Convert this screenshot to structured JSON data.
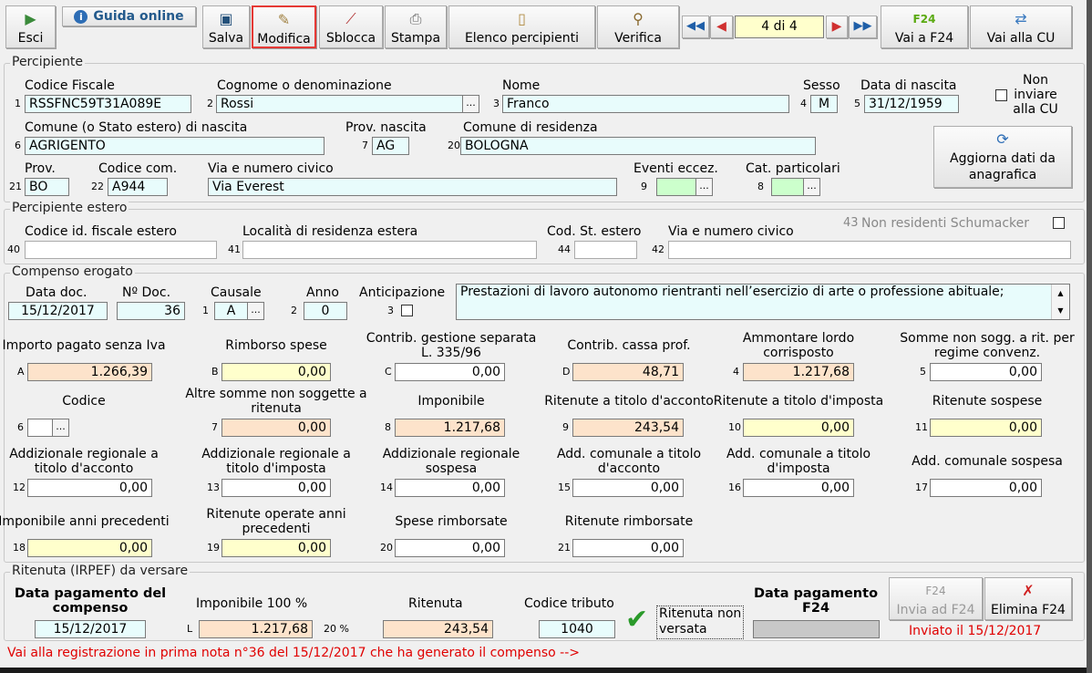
{
  "toolbar": {
    "esci": "Esci",
    "guida": "Guida online",
    "salva": "Salva",
    "modifica": "Modifica",
    "sblocca": "Sblocca",
    "stampa": "Stampa",
    "elenco": "Elenco percipienti",
    "verifica": "Verifica",
    "record": "4 di 4",
    "vai_f24": "Vai a F24",
    "vai_cu": "Vai alla CU"
  },
  "percipiente": {
    "title": "Percipiente",
    "cf_label": "Codice Fiscale",
    "cf": "RSSFNC59T31A089E",
    "cognome_label": "Cognome o denominazione",
    "cognome": "Rossi",
    "nome_label": "Nome",
    "nome": "Franco",
    "sesso_label": "Sesso",
    "sesso": "M",
    "nascita_label": "Data di nascita",
    "nascita": "31/12/1959",
    "non_inviare": "Non inviare alla CU",
    "comune_nascita_label": "Comune (o Stato estero) di nascita",
    "comune_nascita": "AGRIGENTO",
    "prov_nascita_label": "Prov. nascita",
    "prov_nascita": "AG",
    "comune_res_label": "Comune di residenza",
    "comune_res": "BOLOGNA",
    "aggiorna": "Aggiorna dati da anagrafica",
    "prov_label": "Prov.",
    "prov": "BO",
    "codcom_label": "Codice com.",
    "codcom": "A944",
    "via_label": "Via e numero civico",
    "via": "Via Everest",
    "eventi_label": "Eventi eccez.",
    "cat_label": "Cat. particolari"
  },
  "estero": {
    "title": "Percipiente estero",
    "codid_label": "Codice id. fiscale estero",
    "localita_label": "Località di residenza estera",
    "codst_label": "Cod. St. estero",
    "via_label": "Via e numero civico",
    "schumacker": "Non residenti Schumacker"
  },
  "compenso": {
    "title": "Compenso erogato",
    "datadoc_label": "Data doc.",
    "datadoc": "15/12/2017",
    "ndoc_label": "Nº Doc.",
    "ndoc": "36",
    "causale_label": "Causale",
    "causale": "A",
    "anno_label": "Anno",
    "anno": "0",
    "anticipazione_label": "Anticipazione",
    "descrizione": "Prestazioni di lavoro autonomo rientranti nell’esercizio di arte o professione abituale;",
    "cells": [
      {
        "p": "A",
        "label": "Importo pagato senza Iva",
        "value": "1.266,39",
        "color": "or"
      },
      {
        "p": "B",
        "label": "Rimborso spese",
        "value": "0,00",
        "color": "ye"
      },
      {
        "p": "C",
        "label": "Contrib. gestione separata L. 335/96",
        "value": "0,00",
        "color": "wh"
      },
      {
        "p": "D",
        "label": "Contrib. cassa prof.",
        "value": "48,71",
        "color": "or"
      },
      {
        "p": "4",
        "label": "Ammontare lordo corrisposto",
        "value": "1.217,68",
        "color": "or"
      },
      {
        "p": "5",
        "label": "Somme non sogg. a rit. per regime convenz.",
        "value": "0,00",
        "color": "wh"
      },
      {
        "p": "6",
        "label": "Codice",
        "value": "",
        "color": "wh",
        "dots": true
      },
      {
        "p": "7",
        "label": "Altre somme non soggette a ritenuta",
        "value": "0,00",
        "color": "or"
      },
      {
        "p": "8",
        "label": "Imponibile",
        "value": "1.217,68",
        "color": "or"
      },
      {
        "p": "9",
        "label": "Ritenute a titolo d'acconto",
        "value": "243,54",
        "color": "or"
      },
      {
        "p": "10",
        "label": "Ritenute a titolo d'imposta",
        "value": "0,00",
        "color": "ye"
      },
      {
        "p": "11",
        "label": "Ritenute sospese",
        "value": "0,00",
        "color": "ye"
      },
      {
        "p": "12",
        "label": "Addizionale regionale a titolo d'acconto",
        "value": "0,00",
        "color": "wh"
      },
      {
        "p": "13",
        "label": "Addizionale regionale a titolo d'imposta",
        "value": "0,00",
        "color": "wh"
      },
      {
        "p": "14",
        "label": "Addizionale regionale sospesa",
        "value": "0,00",
        "color": "wh"
      },
      {
        "p": "15",
        "label": "Add. comunale a titolo d'acconto",
        "value": "0,00",
        "color": "wh"
      },
      {
        "p": "16",
        "label": "Add. comunale a titolo d'imposta",
        "value": "0,00",
        "color": "wh"
      },
      {
        "p": "17",
        "label": "Add. comunale sospesa",
        "value": "0,00",
        "color": "wh"
      },
      {
        "p": "18",
        "label": "Imponibile anni precedenti",
        "value": "0,00",
        "color": "ye"
      },
      {
        "p": "19",
        "label": "Ritenute operate anni precedenti",
        "value": "0,00",
        "color": "ye"
      },
      {
        "p": "20",
        "label": "Spese rimborsate",
        "value": "0,00",
        "color": "wh"
      },
      {
        "p": "21",
        "label": "Ritenute rimborsate",
        "value": "0,00",
        "color": "wh"
      }
    ]
  },
  "ritenuta": {
    "title": "Ritenuta (IRPEF) da versare",
    "datapag_label": "Data pagamento del compenso",
    "datapag": "15/12/2017",
    "imponibile_label": "Imponibile 100 %",
    "imponibile": "1.217,68",
    "perc": "20 %",
    "ritenuta_label": "Ritenuta",
    "ritenuta": "243,54",
    "codtrib_label": "Codice tributo",
    "codtrib": "1040",
    "non_versata": "Ritenuta non versata",
    "datapagf24_label": "Data pagamento F24",
    "invia": "Invia ad F24",
    "elimina": "Elimina F24",
    "inviato_label": "Inviato il",
    "inviato": "15/12/2017"
  },
  "footer_link": "Vai alla registrazione in prima nota n°36 del 15/12/2017 che ha generato il compenso -->",
  "colors": {
    "highlight": "#e53935",
    "link": "#e00000",
    "cyan": "#e8fcfc",
    "orange": "#fde3cb",
    "yellow": "#ffffcc"
  }
}
